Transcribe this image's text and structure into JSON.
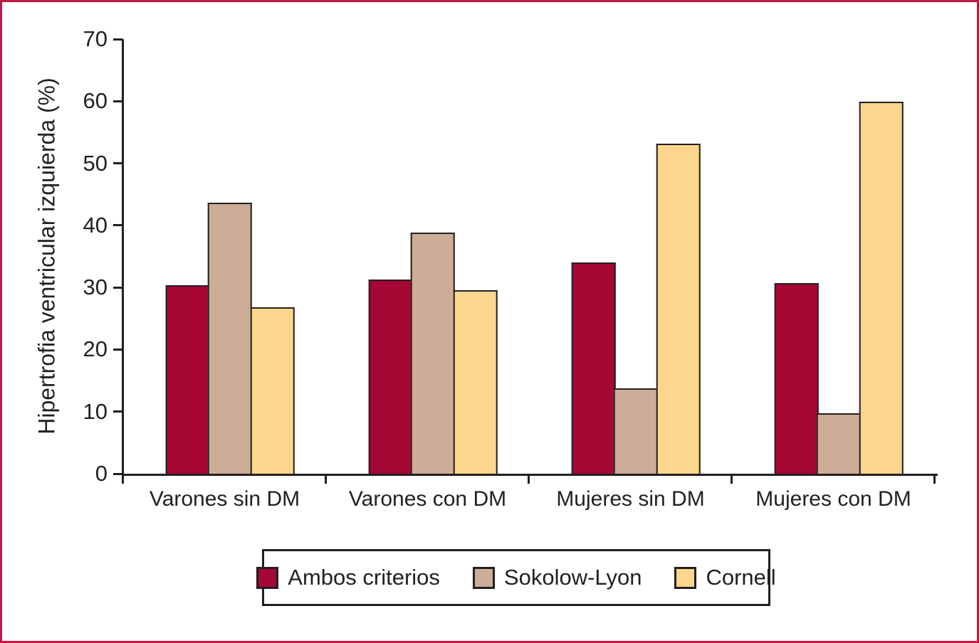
{
  "figure": {
    "frame_color": "#c11747",
    "axis_color": "#231f20",
    "background": "#ffffff"
  },
  "chart_data": {
    "type": "bar",
    "title": "",
    "xlabel": "",
    "ylabel": "Hipertrofia ventricular izquierda (%)",
    "ylim": [
      0,
      70
    ],
    "yticks": [
      70,
      60,
      50,
      40,
      30,
      20,
      10,
      0
    ],
    "grid": false,
    "legend_position": "bottom",
    "categories": [
      "Varones sin DM",
      "Varones con DM",
      "Mujeres sin DM",
      "Mujeres con DM"
    ],
    "series": [
      {
        "name": "Ambos criterios",
        "color": "#a60634",
        "values": [
          30.4,
          31.3,
          34.0,
          30.7
        ]
      },
      {
        "name": "Sokolow-Lyon",
        "color": "#cdad97",
        "values": [
          43.7,
          38.8,
          13.8,
          9.7
        ]
      },
      {
        "name": "Cornell",
        "color": "#fbd68c",
        "values": [
          26.8,
          29.6,
          53.2,
          59.9
        ]
      }
    ]
  }
}
